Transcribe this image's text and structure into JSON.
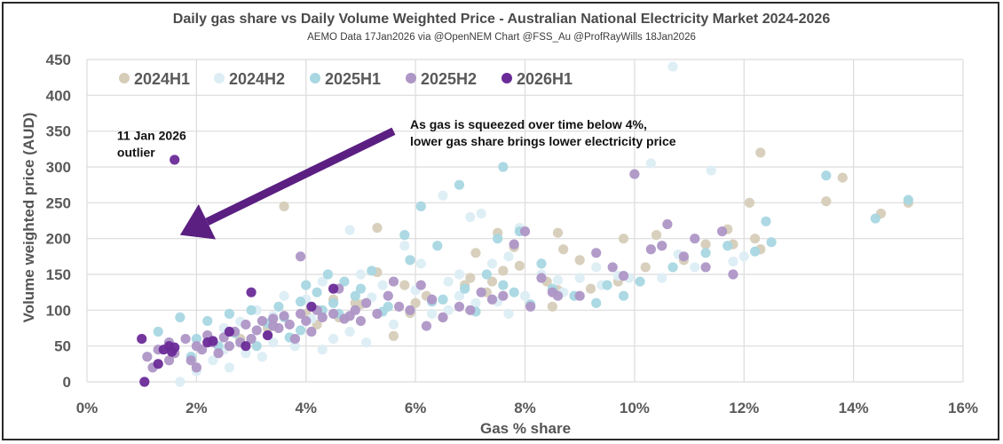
{
  "chart_data": {
    "type": "scatter",
    "title": "Daily gas share vs Daily Volume Weighted Price - Australian National Electricity Market 2024-2026",
    "subtitle": "AEMO Data 17Jan2026  via @OpenNEM Chart @FSS_Au @ProfRayWills 18Jan2026",
    "xlabel": "Gas % share",
    "ylabel": "Volume  weighted price (AUD)",
    "xlim": [
      0,
      16
    ],
    "ylim": [
      0,
      450
    ],
    "x_ticks": [
      "0%",
      "2%",
      "4%",
      "6%",
      "8%",
      "10%",
      "12%",
      "14%",
      "16%"
    ],
    "x_tick_values": [
      0,
      2,
      4,
      6,
      8,
      10,
      12,
      14,
      16
    ],
    "y_ticks": [
      "0",
      "50",
      "100",
      "150",
      "200",
      "250",
      "300",
      "350",
      "400",
      "450"
    ],
    "y_tick_values": [
      0,
      50,
      100,
      150,
      200,
      250,
      300,
      350,
      400,
      450
    ],
    "grid": true,
    "legend_position": "top-left",
    "annotations": [
      {
        "text_lines": [
          "11 Jan 2026",
          "outlier"
        ],
        "x": 0.55,
        "y": 338
      },
      {
        "text_lines": [
          "As gas is squeezed over time below 4%,",
          "lower gas share brings lower electricity price"
        ],
        "x": 5.9,
        "y": 353
      }
    ],
    "arrow": {
      "from": [
        5.6,
        350
      ],
      "to": [
        1.7,
        205
      ],
      "color": "#5b1f82"
    },
    "series": [
      {
        "name": "2024H1",
        "color": "#d6cdb9",
        "points": [
          [
            3.6,
            245
          ],
          [
            5.3,
            215
          ],
          [
            12.3,
            320
          ],
          [
            13.8,
            285
          ],
          [
            13.5,
            252
          ],
          [
            14.5,
            235
          ],
          [
            15.0,
            250
          ],
          [
            12.1,
            250
          ],
          [
            12.2,
            200
          ],
          [
            12.3,
            185
          ],
          [
            11.8,
            192
          ],
          [
            11.3,
            192
          ],
          [
            11.7,
            213
          ],
          [
            10.4,
            205
          ],
          [
            9.8,
            200
          ],
          [
            9.0,
            170
          ],
          [
            8.7,
            185
          ],
          [
            8.6,
            208
          ],
          [
            7.5,
            208
          ],
          [
            7.8,
            188
          ],
          [
            7.6,
            155
          ],
          [
            7.1,
            180
          ],
          [
            7.0,
            145
          ],
          [
            7.9,
            162
          ],
          [
            8.4,
            140
          ],
          [
            8.6,
            128
          ],
          [
            6.2,
            120
          ],
          [
            5.8,
            135
          ],
          [
            5.3,
            153
          ],
          [
            5.0,
            108
          ],
          [
            4.9,
            110
          ],
          [
            4.6,
            90
          ],
          [
            4.2,
            80
          ],
          [
            3.3,
            75
          ],
          [
            2.8,
            60
          ],
          [
            6.5,
            90
          ],
          [
            6.0,
            110
          ],
          [
            7.3,
            125
          ],
          [
            8.5,
            105
          ],
          [
            9.2,
            130
          ],
          [
            9.7,
            140
          ],
          [
            10.2,
            160
          ],
          [
            10.9,
            170
          ],
          [
            6.9,
            135
          ],
          [
            5.6,
            64
          ],
          [
            4.0,
            95
          ],
          [
            4.5,
            115
          ],
          [
            5.9,
            96
          ],
          [
            7.4,
            140
          ]
        ]
      },
      {
        "name": "2024H2",
        "color": "#dcedf4",
        "points": [
          [
            1.7,
            0
          ],
          [
            2.0,
            15
          ],
          [
            2.3,
            30
          ],
          [
            2.6,
            20
          ],
          [
            2.9,
            40
          ],
          [
            2.5,
            45
          ],
          [
            3.2,
            35
          ],
          [
            3.4,
            55
          ],
          [
            3.0,
            60
          ],
          [
            3.8,
            50
          ],
          [
            4.3,
            45
          ],
          [
            4.5,
            60
          ],
          [
            4.8,
            70
          ],
          [
            5.1,
            55
          ],
          [
            5.6,
            80
          ],
          [
            6.3,
            95
          ],
          [
            6.6,
            100
          ],
          [
            7.1,
            110
          ],
          [
            7.5,
            112
          ],
          [
            7.7,
            95
          ],
          [
            8.0,
            120
          ],
          [
            8.7,
            125
          ],
          [
            9.4,
            135
          ],
          [
            9.9,
            145
          ],
          [
            10.7,
            440
          ],
          [
            10.3,
            305
          ],
          [
            11.4,
            295
          ],
          [
            7.2,
            235
          ],
          [
            6.5,
            260
          ],
          [
            4.8,
            212
          ],
          [
            5.8,
            190
          ],
          [
            6.8,
            150
          ],
          [
            7.7,
            175
          ],
          [
            9.0,
            145
          ],
          [
            10.5,
            145
          ],
          [
            11.1,
            160
          ],
          [
            12.0,
            175
          ],
          [
            6.1,
            165
          ],
          [
            5.4,
            135
          ],
          [
            4.0,
            115
          ],
          [
            3.1,
            100
          ],
          [
            2.5,
            75
          ],
          [
            3.6,
            120
          ],
          [
            4.3,
            140
          ],
          [
            5.0,
            150
          ],
          [
            6.8,
            120
          ],
          [
            7.4,
            165
          ],
          [
            8.3,
            150
          ],
          [
            9.7,
            148
          ],
          [
            10.8,
            178
          ],
          [
            11.8,
            168
          ],
          [
            7.9,
            215
          ],
          [
            8.6,
            142
          ],
          [
            9.3,
            160
          ],
          [
            4.1,
            88
          ],
          [
            2.8,
            84
          ],
          [
            3.4,
            92
          ],
          [
            5.2,
            118
          ],
          [
            6.0,
            128
          ],
          [
            6.6,
            140
          ],
          [
            7.0,
            230
          ]
        ]
      },
      {
        "name": "2025H1",
        "color": "#a8d7e2",
        "points": [
          [
            1.3,
            70
          ],
          [
            1.7,
            90
          ],
          [
            2.2,
            85
          ],
          [
            2.6,
            95
          ],
          [
            3.0,
            100
          ],
          [
            3.5,
            105
          ],
          [
            3.9,
            112
          ],
          [
            4.2,
            125
          ],
          [
            4.4,
            150
          ],
          [
            4.7,
            140
          ],
          [
            5.2,
            155
          ],
          [
            5.8,
            205
          ],
          [
            6.1,
            245
          ],
          [
            6.8,
            275
          ],
          [
            7.6,
            300
          ],
          [
            7.9,
            210
          ],
          [
            8.3,
            165
          ],
          [
            8.9,
            120
          ],
          [
            9.3,
            110
          ],
          [
            9.8,
            120
          ],
          [
            10.1,
            140
          ],
          [
            10.7,
            160
          ],
          [
            11.3,
            180
          ],
          [
            11.7,
            190
          ],
          [
            12.2,
            182
          ],
          [
            12.4,
            224
          ],
          [
            12.5,
            195
          ],
          [
            13.5,
            288
          ],
          [
            14.4,
            228
          ],
          [
            15.0,
            254
          ],
          [
            4.0,
            135
          ],
          [
            4.5,
            110
          ],
          [
            5.0,
            130
          ],
          [
            5.5,
            105
          ],
          [
            6.3,
            112
          ],
          [
            6.9,
            130
          ],
          [
            7.3,
            150
          ],
          [
            7.8,
            125
          ],
          [
            8.1,
            108
          ],
          [
            2.0,
            60
          ],
          [
            2.7,
            68
          ],
          [
            3.3,
            82
          ],
          [
            3.9,
            72
          ],
          [
            4.6,
            95
          ],
          [
            5.4,
            98
          ],
          [
            6.5,
            115
          ],
          [
            7.1,
            98
          ],
          [
            7.6,
            135
          ],
          [
            8.5,
            130
          ],
          [
            9.5,
            135
          ],
          [
            2.4,
            50
          ],
          [
            3.1,
            50
          ],
          [
            3.7,
            62
          ],
          [
            4.9,
            120
          ],
          [
            5.9,
            170
          ],
          [
            6.4,
            190
          ],
          [
            7.5,
            200
          ],
          [
            1.9,
            35
          ],
          [
            3.6,
            90
          ],
          [
            4.3,
            100
          ]
        ]
      },
      {
        "name": "2025H2",
        "color": "#ae96c6",
        "points": [
          [
            1.1,
            35
          ],
          [
            1.2,
            20
          ],
          [
            1.3,
            45
          ],
          [
            1.5,
            55
          ],
          [
            1.6,
            40
          ],
          [
            1.8,
            60
          ],
          [
            1.9,
            30
          ],
          [
            2.0,
            50
          ],
          [
            2.1,
            45
          ],
          [
            2.2,
            65
          ],
          [
            2.3,
            55
          ],
          [
            2.4,
            40
          ],
          [
            2.5,
            62
          ],
          [
            2.6,
            50
          ],
          [
            2.7,
            70
          ],
          [
            2.8,
            55
          ],
          [
            2.9,
            80
          ],
          [
            3.0,
            60
          ],
          [
            3.1,
            72
          ],
          [
            3.2,
            85
          ],
          [
            3.3,
            65
          ],
          [
            3.4,
            88
          ],
          [
            3.5,
            75
          ],
          [
            3.6,
            92
          ],
          [
            3.7,
            80
          ],
          [
            3.8,
            60
          ],
          [
            3.9,
            95
          ],
          [
            4.0,
            85
          ],
          [
            4.1,
            70
          ],
          [
            4.2,
            100
          ],
          [
            4.3,
            90
          ],
          [
            4.5,
            95
          ],
          [
            4.7,
            88
          ],
          [
            4.9,
            100
          ],
          [
            5.1,
            110
          ],
          [
            5.3,
            95
          ],
          [
            5.5,
            120
          ],
          [
            5.7,
            105
          ],
          [
            5.9,
            100
          ],
          [
            6.1,
            135
          ],
          [
            6.3,
            115
          ],
          [
            6.5,
            90
          ],
          [
            6.8,
            105
          ],
          [
            7.0,
            100
          ],
          [
            7.2,
            125
          ],
          [
            7.4,
            115
          ],
          [
            7.6,
            120
          ],
          [
            7.8,
            192
          ],
          [
            8.1,
            105
          ],
          [
            8.3,
            145
          ],
          [
            8.5,
            125
          ],
          [
            9.0,
            120
          ],
          [
            9.6,
            160
          ],
          [
            10.0,
            290
          ],
          [
            10.3,
            185
          ],
          [
            10.6,
            220
          ],
          [
            10.9,
            175
          ],
          [
            11.1,
            200
          ],
          [
            11.3,
            160
          ],
          [
            11.6,
            210
          ],
          [
            11.8,
            150
          ],
          [
            10.5,
            190
          ],
          [
            9.3,
            180
          ],
          [
            8.0,
            210
          ],
          [
            3.9,
            175
          ],
          [
            4.6,
            130
          ],
          [
            2.0,
            20
          ],
          [
            1.5,
            30
          ],
          [
            3.4,
            78
          ],
          [
            4.8,
            92
          ],
          [
            6.2,
            78
          ],
          [
            8.6,
            120
          ],
          [
            9.8,
            148
          ],
          [
            5.0,
            85
          ],
          [
            5.6,
            140
          ]
        ]
      },
      {
        "name": "2026H1",
        "color": "#6a2b98",
        "points": [
          [
            1.6,
            310
          ],
          [
            1.0,
            60
          ],
          [
            1.05,
            0
          ],
          [
            1.3,
            25
          ],
          [
            1.4,
            45
          ],
          [
            1.5,
            50
          ],
          [
            1.55,
            42
          ],
          [
            1.6,
            48
          ],
          [
            2.2,
            55
          ],
          [
            2.3,
            57
          ],
          [
            2.6,
            70
          ],
          [
            3.0,
            125
          ],
          [
            2.9,
            50
          ],
          [
            3.3,
            65
          ],
          [
            4.1,
            105
          ],
          [
            4.5,
            130
          ]
        ]
      }
    ]
  }
}
